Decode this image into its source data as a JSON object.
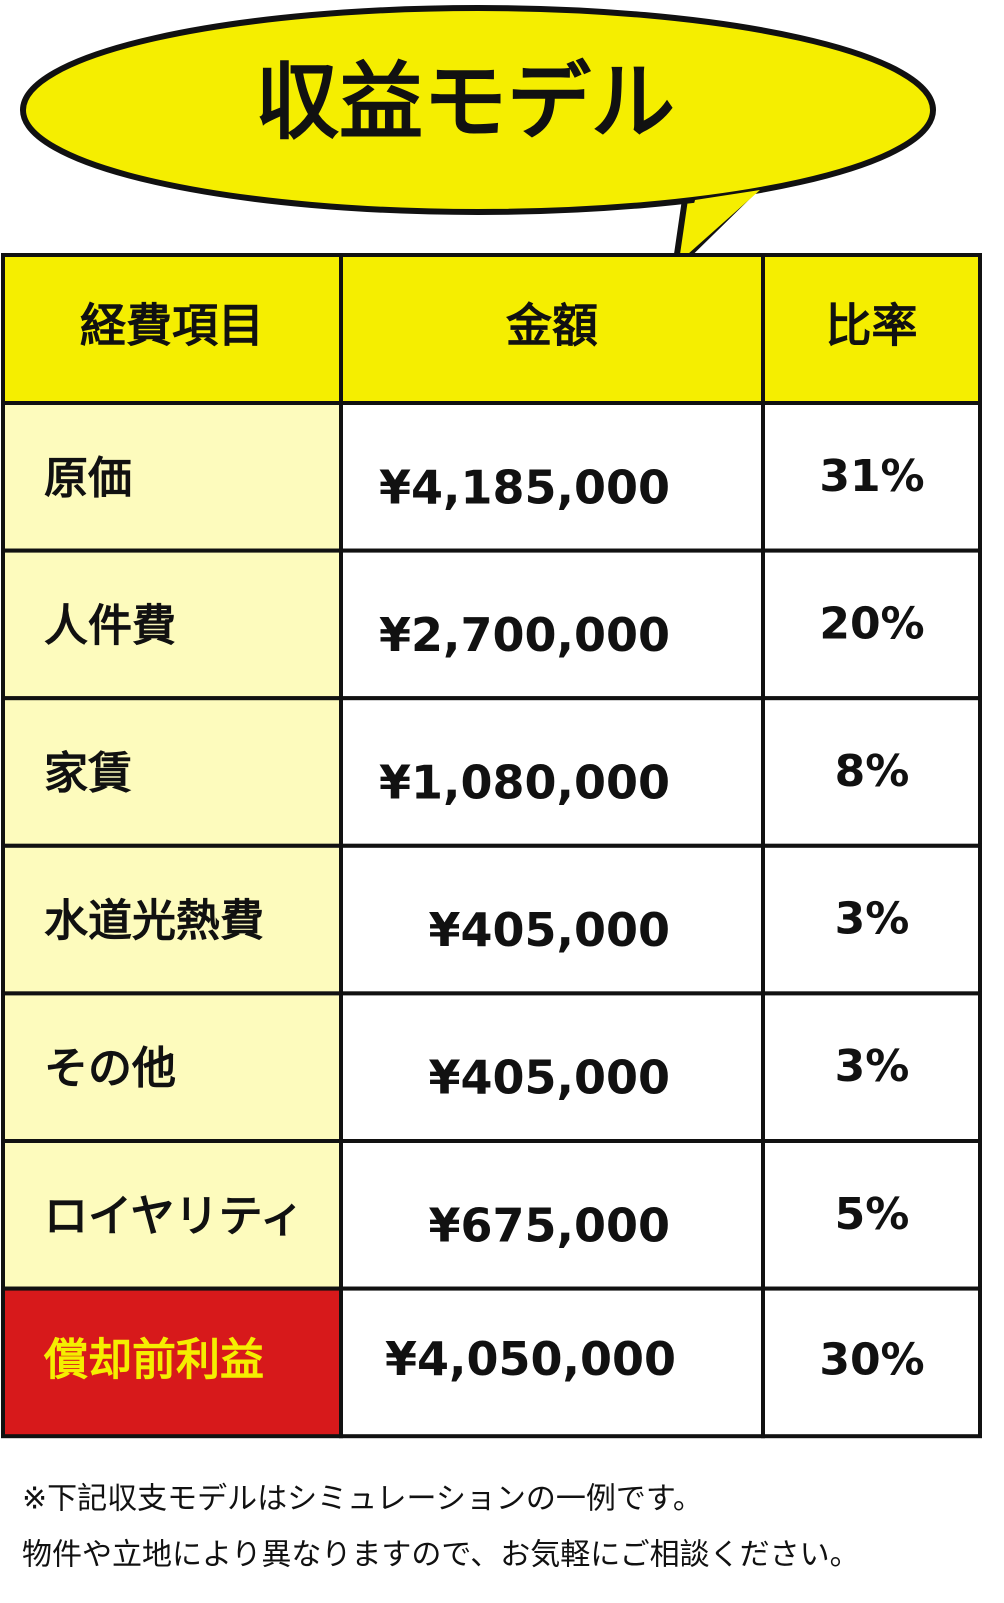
{
  "header": {
    "title": "収益モデル"
  },
  "table": {
    "headers": [
      "経費項目",
      "金額",
      "比率"
    ],
    "rows": [
      [
        "原価",
        "¥4,185,000",
        "31%"
      ],
      [
        "人件費",
        "¥2,700,000",
        "20%"
      ],
      [
        "家賃",
        "¥1,080,000",
        "8%"
      ],
      [
        "水道光熱費",
        "¥405,000",
        "3%"
      ],
      [
        "その他",
        "¥405,000",
        "3%"
      ],
      [
        "ロイヤリティ",
        "¥675,000",
        "5%"
      ],
      [
        "償却前利益",
        "¥4,050,000",
        "30%"
      ]
    ]
  },
  "footnote": [
    "※下記収支モデルはシミュレーションの一例です。",
    "物件や立地により異なりますので、お気軽にご相談ください。"
  ]
}
